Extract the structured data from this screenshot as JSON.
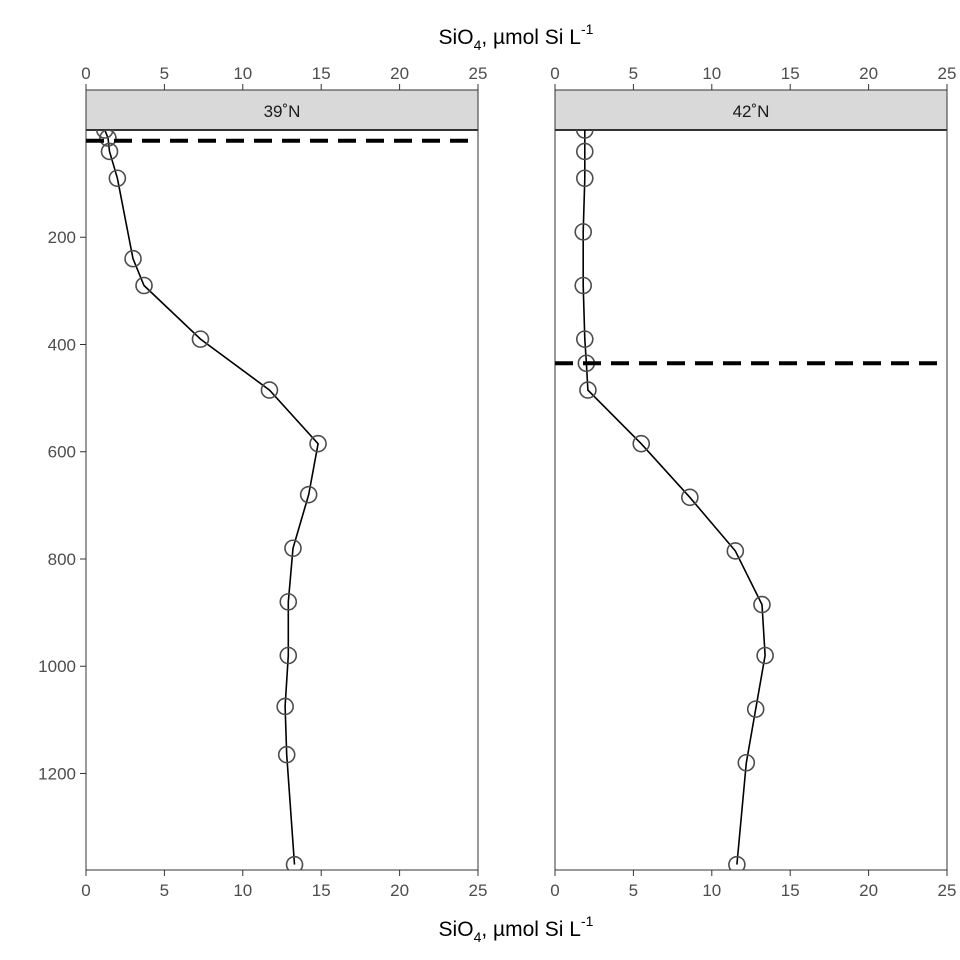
{
  "chart_data": {
    "type": "line",
    "x_axis": {
      "label_main": "SiO",
      "label_sub": "4",
      "label_mid": ", µmol Si L",
      "label_sup": "-1",
      "xlim": [
        0,
        25
      ],
      "ticks": [
        0,
        5,
        10,
        15,
        20,
        25
      ],
      "tick_labels": [
        "0",
        "5",
        "10",
        "15",
        "20",
        "25"
      ],
      "position": "top-and-bottom"
    },
    "y_axis": {
      "ylim": [
        1380,
        0
      ],
      "reversed": true,
      "ticks": [
        200,
        400,
        600,
        800,
        1000,
        1200
      ],
      "tick_labels": [
        "200",
        "400",
        "600",
        "800",
        "1000",
        "1200"
      ]
    },
    "grid": false,
    "panels": [
      {
        "strip_label": "39˚N",
        "reference_depth": 20,
        "x": [
          1.2,
          1.4,
          1.5,
          2.0,
          3.0,
          3.7,
          7.3,
          11.7,
          14.8,
          14.2,
          13.2,
          12.9,
          12.9,
          12.7,
          12.8,
          13.3
        ],
        "y": [
          0,
          15,
          40,
          90,
          240,
          290,
          390,
          485,
          585,
          680,
          780,
          880,
          980,
          1075,
          1165,
          1370
        ]
      },
      {
        "strip_label": "42˚N",
        "reference_depth": 435,
        "x": [
          1.9,
          1.9,
          1.9,
          1.8,
          1.8,
          1.9,
          2.0,
          2.1,
          5.5,
          8.6,
          11.5,
          13.2,
          13.4,
          12.8,
          12.2,
          11.6
        ],
        "y": [
          0,
          40,
          90,
          190,
          290,
          390,
          435,
          485,
          585,
          685,
          785,
          885,
          980,
          1080,
          1180,
          1370
        ]
      }
    ]
  }
}
